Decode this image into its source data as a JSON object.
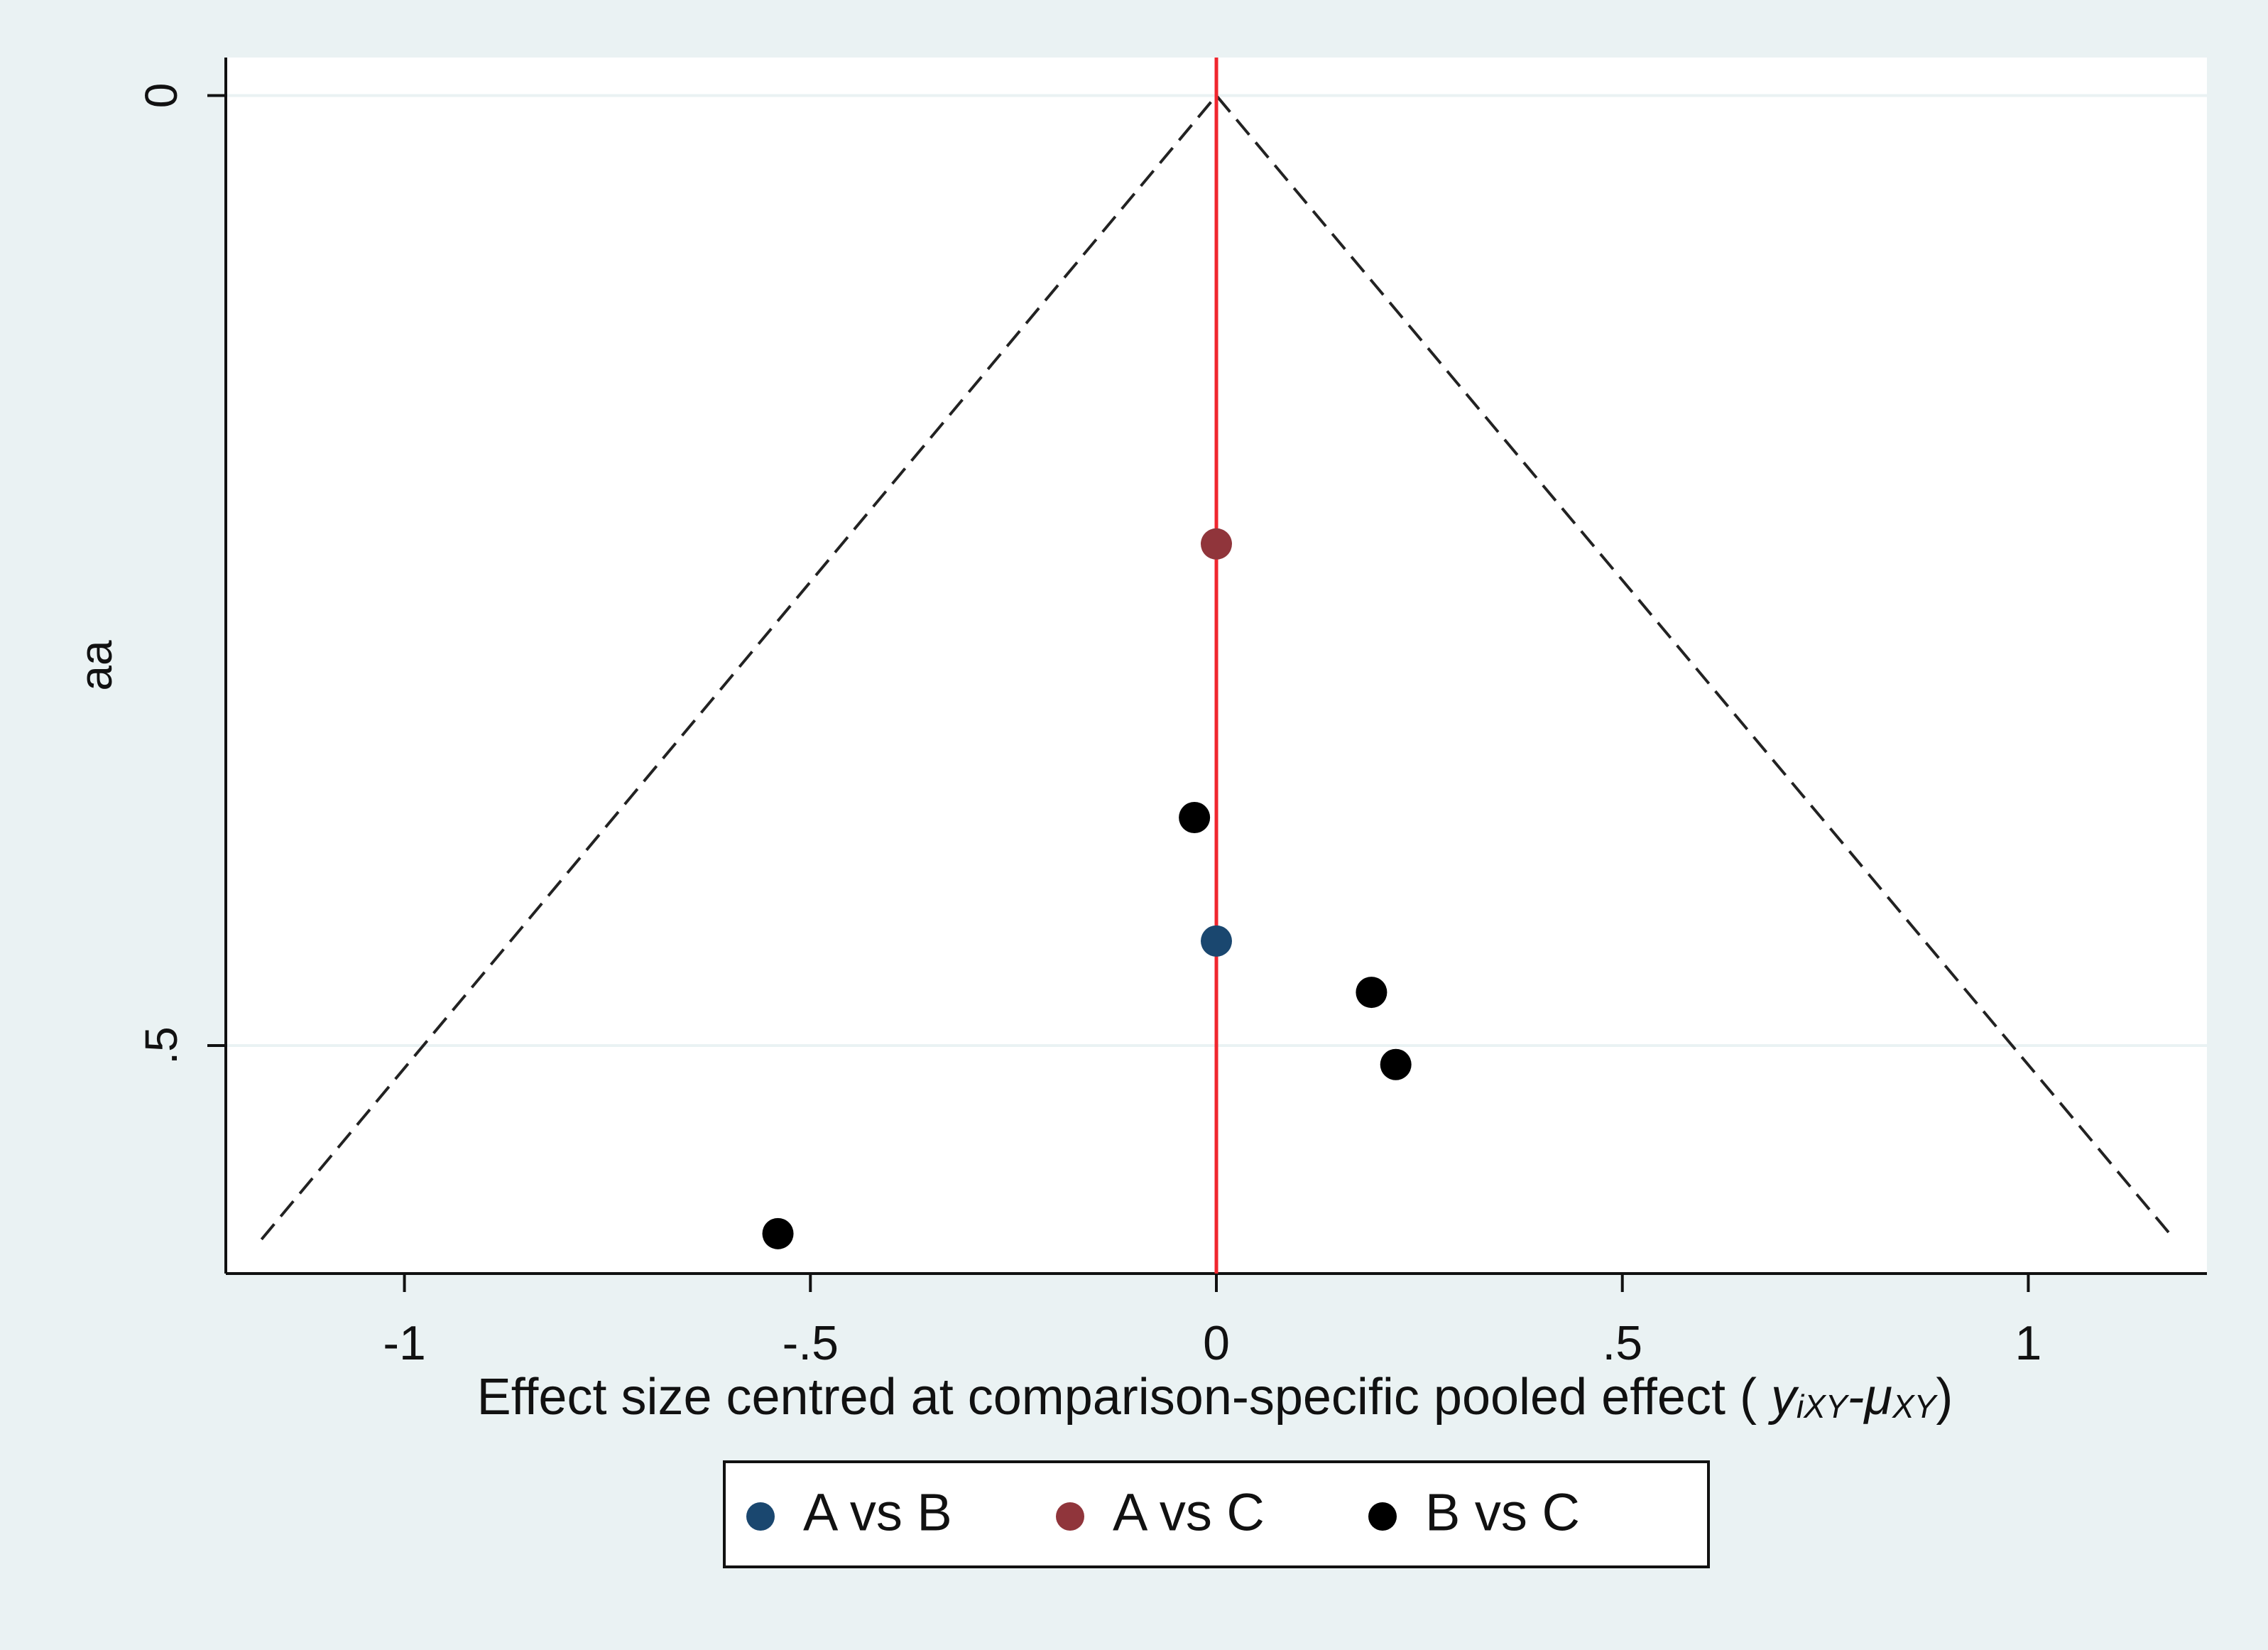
{
  "chart_data": {
    "type": "scatter",
    "ylabel": "aa",
    "xlabel_parts": [
      "Effect size centred at comparison-specific pooled effect ( ",
      "y",
      "iXY",
      "-μ",
      "XY",
      ")"
    ],
    "xlim": [
      -1.22,
      1.22
    ],
    "ylim": [
      -0.02,
      0.62
    ],
    "y_reversed": true,
    "xticks": [
      -1,
      {
        "value": -0.5,
        "label": "-.5"
      },
      0,
      {
        "value": 0.5,
        "label": ".5"
      },
      1
    ],
    "yticks": [
      0,
      {
        "value": 0.5,
        "label": ".5"
      }
    ],
    "grid": true,
    "reference_line": {
      "x": 0,
      "color": "#f0262e"
    },
    "funnel": {
      "x": [
        -1.176,
        0,
        1.18
      ],
      "y": [
        0.602,
        0,
        0.602
      ],
      "color": "#222222"
    },
    "series": [
      {
        "name": "A vs B",
        "color": "#1a476f",
        "x": [
          0
        ],
        "y": [
          0.445
        ]
      },
      {
        "name": "A vs C",
        "color": "#90353b",
        "x": [
          0
        ],
        "y": [
          0.236
        ]
      },
      {
        "name": "B vs C",
        "color": "#000000",
        "x": [
          -0.027,
          0.191,
          0.221,
          -0.54
        ],
        "y": [
          0.38,
          0.472,
          0.51,
          0.599
        ]
      }
    ],
    "legend": "bottom"
  }
}
